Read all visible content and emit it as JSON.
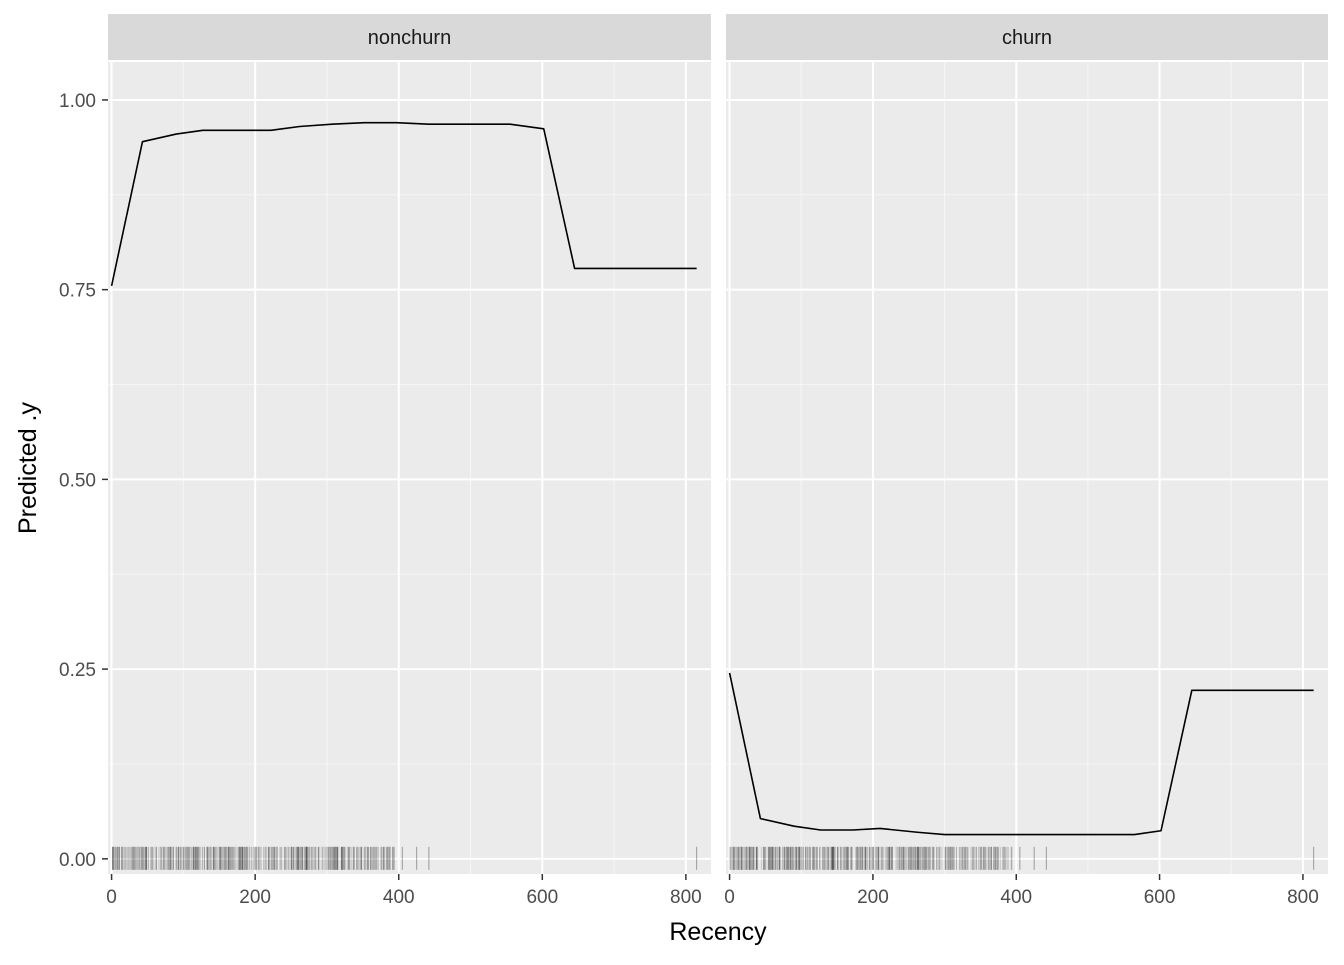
{
  "chart_data": {
    "type": "line",
    "xlabel": "Recency",
    "ylabel": "Predicted .y",
    "xlim": [
      -5,
      835
    ],
    "ylim": [
      -0.02,
      1.05
    ],
    "x_ticks": [
      0,
      200,
      400,
      600,
      800
    ],
    "x_tick_labels": [
      "0",
      "200",
      "400",
      "600",
      "800"
    ],
    "y_ticks": [
      0,
      0.25,
      0.5,
      0.75,
      1
    ],
    "y_tick_labels": [
      "0.00",
      "0.25",
      "0.50",
      "0.75",
      "1.00"
    ],
    "grid": true,
    "legend": "none",
    "colors": {
      "panel_bg": "#ebebeb",
      "strip_bg": "#d9d9d9",
      "grid": "#ffffff",
      "line": "#000000",
      "rug": "#000000"
    },
    "panels": [
      {
        "strip_label": "nonchurn",
        "x": [
          0,
          43,
          90,
          127,
          172,
          222,
          262,
          307,
          352,
          397,
          442,
          487,
          555,
          602,
          645,
          700,
          760,
          815
        ],
        "y": [
          0.755,
          0.945,
          0.955,
          0.96,
          0.96,
          0.96,
          0.965,
          0.968,
          0.97,
          0.97,
          0.968,
          0.968,
          0.968,
          0.962,
          0.778,
          0.778,
          0.778,
          0.778
        ]
      },
      {
        "strip_label": "churn",
        "x": [
          0,
          43,
          90,
          127,
          172,
          210,
          262,
          300,
          352,
          397,
          442,
          487,
          565,
          602,
          645,
          700,
          760,
          815
        ],
        "y": [
          0.245,
          0.053,
          0.043,
          0.038,
          0.038,
          0.04,
          0.035,
          0.032,
          0.032,
          0.032,
          0.032,
          0.032,
          0.032,
          0.037,
          0.222,
          0.222,
          0.222,
          0.222
        ]
      }
    ],
    "rug": {
      "dense_range": [
        0,
        395
      ],
      "dense_count": 520,
      "sparse_x": [
        405,
        425,
        442,
        815
      ],
      "opacity": 0.15
    }
  }
}
